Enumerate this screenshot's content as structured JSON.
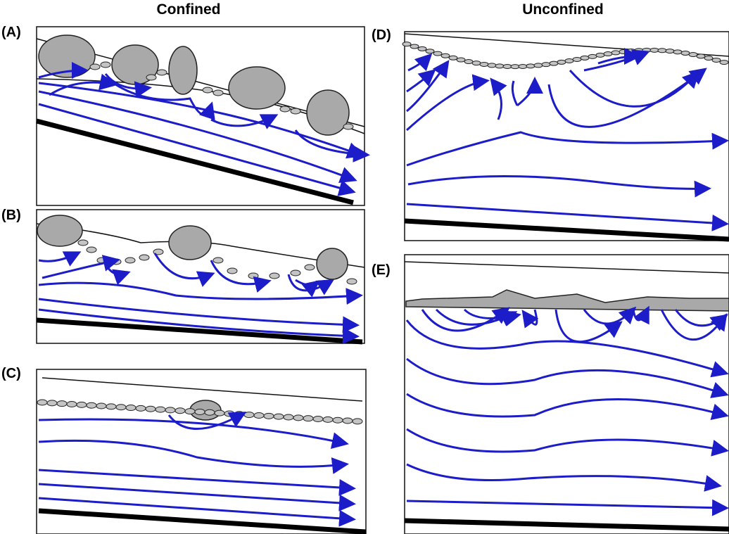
{
  "header": {
    "left_title": "Confined",
    "right_title": "Unconfined"
  },
  "panels": [
    {
      "label": "(A)"
    },
    {
      "label": "(B)"
    },
    {
      "label": "(C)"
    },
    {
      "label": "(D)"
    },
    {
      "label": "(E)"
    }
  ]
}
